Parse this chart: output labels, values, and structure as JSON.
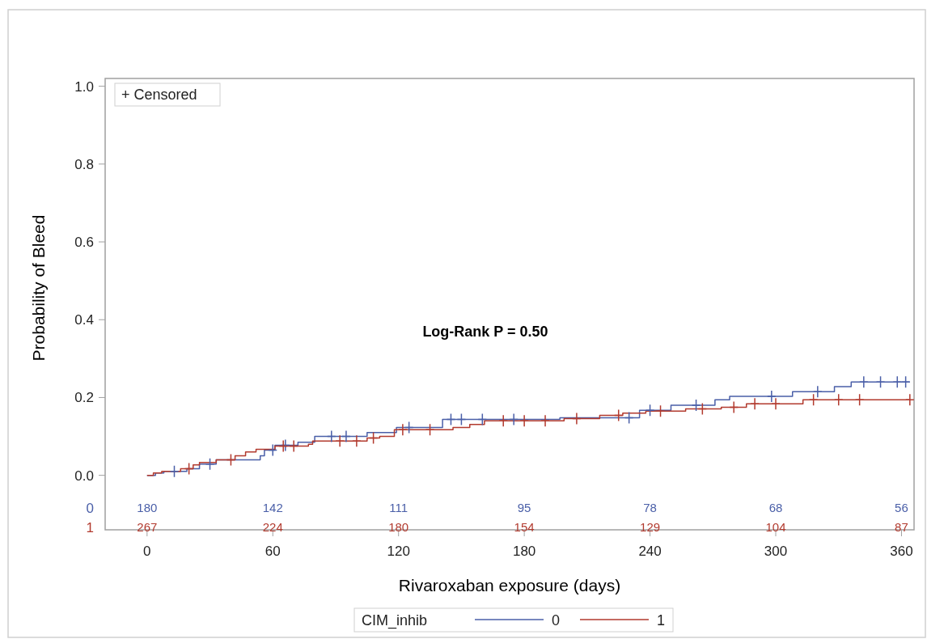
{
  "chart_data": {
    "type": "step",
    "xlabel": "Rivaroxaban exposure (days)",
    "ylabel": "Probability of Bleed",
    "legend_title": "CIM_inhib",
    "legend": "bottom",
    "grid": false,
    "xlim": [
      -20,
      366
    ],
    "xticks": [
      0,
      60,
      120,
      180,
      240,
      300,
      360
    ],
    "ylim": [
      -0.14,
      1.02
    ],
    "yticks": [
      {
        "value": 0,
        "label": "0.0"
      },
      {
        "value": 0.2,
        "label": "0.2"
      },
      {
        "value": 0.4,
        "label": "0.4"
      },
      {
        "value": 0.6,
        "label": "0.6"
      },
      {
        "value": 0.8,
        "label": "0.8"
      },
      {
        "value": 1,
        "label": "1.0"
      }
    ],
    "series": [
      {
        "name": "0",
        "color": "#4a5fa8",
        "x": [
          0,
          4,
          8,
          19,
          25,
          33,
          54,
          56,
          61,
          72,
          80,
          105,
          119,
          141,
          197,
          235,
          250,
          271,
          278,
          308,
          328,
          336,
          364
        ],
        "values": [
          0,
          0.006,
          0.01,
          0.017,
          0.029,
          0.04,
          0.05,
          0.065,
          0.077,
          0.085,
          0.1,
          0.11,
          0.123,
          0.144,
          0.148,
          0.167,
          0.18,
          0.194,
          0.203,
          0.215,
          0.228,
          0.24,
          0.24
        ]
      },
      {
        "name": "1",
        "color": "#b23a2e",
        "x": [
          0,
          3,
          7,
          16,
          22,
          25,
          33,
          42,
          47,
          52,
          61,
          77,
          79,
          105,
          111,
          118,
          146,
          154,
          161,
          199,
          216,
          227,
          238,
          257,
          274,
          286,
          313,
          364
        ],
        "values": [
          0,
          0.006,
          0.01,
          0.017,
          0.027,
          0.033,
          0.04,
          0.05,
          0.06,
          0.067,
          0.075,
          0.08,
          0.088,
          0.096,
          0.1,
          0.117,
          0.123,
          0.131,
          0.14,
          0.146,
          0.154,
          0.16,
          0.165,
          0.171,
          0.175,
          0.184,
          0.194,
          0.194
        ]
      },
      {
        "type": "scatter",
        "marker": "cross",
        "color": "#4a5fa8",
        "x": [
          13,
          30,
          60,
          66,
          88,
          95,
          125,
          145,
          150,
          160,
          175,
          230,
          240,
          262,
          298,
          320,
          342,
          350,
          358,
          362
        ],
        "values": [
          0.01,
          0.029,
          0.065,
          0.077,
          0.1,
          0.1,
          0.123,
          0.144,
          0.144,
          0.144,
          0.144,
          0.148,
          0.167,
          0.18,
          0.203,
          0.215,
          0.24,
          0.24,
          0.24,
          0.24
        ]
      },
      {
        "type": "scatter",
        "marker": "cross",
        "color": "#b23a2e",
        "x": [
          20,
          40,
          65,
          70,
          92,
          100,
          108,
          122,
          135,
          170,
          180,
          190,
          205,
          225,
          245,
          265,
          280,
          290,
          300,
          318,
          330,
          340,
          364
        ],
        "values": [
          0.017,
          0.04,
          0.075,
          0.075,
          0.088,
          0.088,
          0.096,
          0.117,
          0.117,
          0.14,
          0.14,
          0.14,
          0.146,
          0.154,
          0.165,
          0.171,
          0.175,
          0.184,
          0.184,
          0.194,
          0.194,
          0.194,
          0.194
        ]
      }
    ],
    "annotations": [
      "+ Censored",
      "Log-Rank P = 0.50",
      "180",
      "142",
      "111",
      "95",
      "78",
      "68",
      "56",
      "267",
      "224",
      "180",
      "154",
      "129",
      "104",
      "87"
    ]
  }
}
